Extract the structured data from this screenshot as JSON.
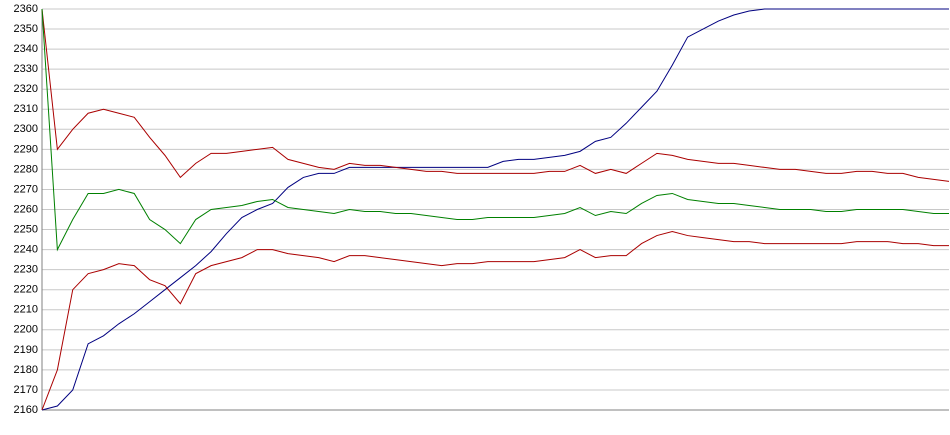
{
  "chart_data": {
    "type": "line",
    "categories": [
      null,
      null,
      null,
      null,
      null,
      null,
      null,
      null,
      null,
      null,
      null,
      null,
      null,
      null,
      null,
      null,
      null,
      null,
      null,
      null,
      null,
      null,
      null,
      null,
      null,
      null,
      null,
      null,
      null,
      null,
      null,
      null,
      null,
      null,
      null,
      null,
      null,
      null,
      null,
      null,
      null,
      null,
      null,
      null,
      null,
      null,
      null,
      null,
      null,
      null,
      null,
      null,
      null,
      null,
      null,
      null,
      null,
      null,
      null,
      null
    ],
    "series": [
      {
        "color": "#000080",
        "values": [
          2160,
          2162,
          2170,
          2193,
          2197,
          2203,
          2208,
          2214,
          2220,
          2226,
          2232,
          2239,
          2248,
          2256,
          2260,
          2263,
          2271,
          2276,
          2278,
          2278,
          2281,
          2281,
          2281,
          2281,
          2281,
          2281,
          2281,
          2281,
          2281,
          2281,
          2284,
          2285,
          2285,
          2286,
          2287,
          2289,
          2294,
          2296,
          2303,
          2311,
          2319,
          2332,
          2346,
          2350,
          2354,
          2357,
          2359,
          2360,
          2360,
          2360,
          2360,
          2360,
          2360,
          2360,
          2360,
          2360,
          2360,
          2360,
          2360,
          2360
        ]
      },
      {
        "color": "#aa0000",
        "values": [
          2360,
          2290,
          2300,
          2308,
          2310,
          2308,
          2306,
          2296,
          2287,
          2276,
          2283,
          2288,
          2288,
          2289,
          2290,
          2291,
          2285,
          2283,
          2281,
          2280,
          2283,
          2282,
          2282,
          2281,
          2280,
          2279,
          2279,
          2278,
          2278,
          2278,
          2278,
          2278,
          2278,
          2279,
          2279,
          2282,
          2278,
          2280,
          2278,
          2283,
          2288,
          2287,
          2285,
          2284,
          2283,
          2283,
          2282,
          2281,
          2280,
          2280,
          2279,
          2278,
          2278,
          2279,
          2279,
          2278,
          2278,
          2276,
          2275,
          2274
        ]
      },
      {
        "color": "#008000",
        "values": [
          2360,
          2240,
          2255,
          2268,
          2268,
          2270,
          2268,
          2255,
          2250,
          2243,
          2255,
          2260,
          2261,
          2262,
          2264,
          2265,
          2261,
          2260,
          2259,
          2258,
          2260,
          2259,
          2259,
          2258,
          2258,
          2257,
          2256,
          2255,
          2255,
          2256,
          2256,
          2256,
          2256,
          2257,
          2258,
          2261,
          2257,
          2259,
          2258,
          2263,
          2267,
          2268,
          2265,
          2264,
          2263,
          2263,
          2262,
          2261,
          2260,
          2260,
          2260,
          2259,
          2259,
          2260,
          2260,
          2260,
          2260,
          2259,
          2258,
          2258
        ]
      },
      {
        "color": "#aa0000",
        "values": [
          2160,
          2180,
          2220,
          2228,
          2230,
          2233,
          2232,
          2225,
          2222,
          2213,
          2228,
          2232,
          2234,
          2236,
          2240,
          2240,
          2238,
          2237,
          2236,
          2234,
          2237,
          2237,
          2236,
          2235,
          2234,
          2233,
          2232,
          2233,
          2233,
          2234,
          2234,
          2234,
          2234,
          2235,
          2236,
          2240,
          2236,
          2237,
          2237,
          2243,
          2247,
          2249,
          2247,
          2246,
          2245,
          2244,
          2244,
          2243,
          2243,
          2243,
          2243,
          2243,
          2243,
          2244,
          2244,
          2244,
          2243,
          2243,
          2242,
          2242
        ]
      }
    ],
    "ylim": [
      2160,
      2360
    ],
    "yticks": [
      2160,
      2170,
      2180,
      2190,
      2200,
      2210,
      2220,
      2230,
      2240,
      2250,
      2260,
      2270,
      2280,
      2290,
      2300,
      2310,
      2320,
      2330,
      2340,
      2350,
      2360
    ],
    "grid": true
  }
}
